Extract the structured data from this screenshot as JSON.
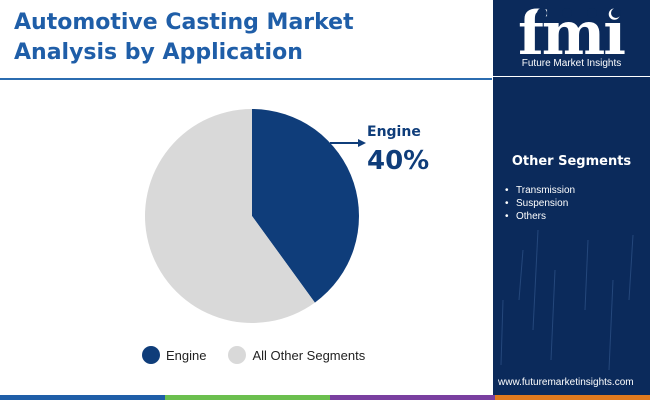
{
  "title_line1": "Automotive Casting Market",
  "title_line2": "Analysis by Application",
  "chart_data": {
    "type": "pie",
    "slices": [
      {
        "label": "Engine",
        "value": 40,
        "color": "#0f3d7a"
      },
      {
        "label": "All Other Segments",
        "value": 60,
        "color": "#d9d9d9"
      }
    ],
    "callout": {
      "label": "Engine",
      "value_text": "40%"
    },
    "legend": [
      "Engine",
      "All Other Segments"
    ],
    "legend_placement": "bottom"
  },
  "sidebar": {
    "logo_letters": "fmi",
    "brand_name": "Future Market Insights",
    "heading": "Other Segments",
    "items": [
      "Transmission",
      "Suspension",
      "Others"
    ],
    "website": "www.futuremarketinsights.com",
    "background_color": "#0b2a5b"
  },
  "accent_colors": [
    "#1f5ea8",
    "#6bbf4e",
    "#7a3fa0",
    "#e07a1f"
  ]
}
